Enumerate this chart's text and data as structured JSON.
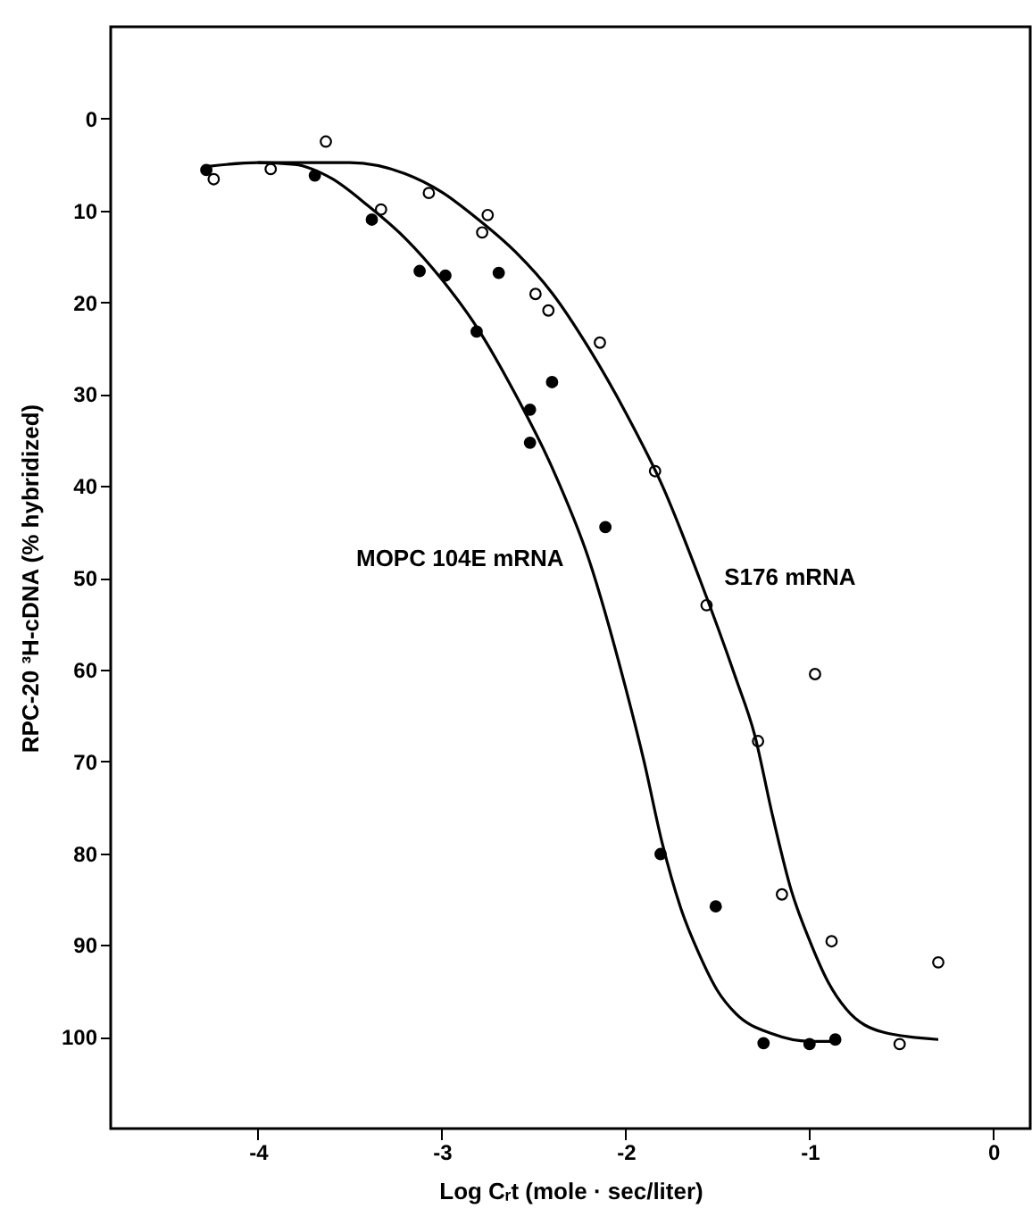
{
  "chart_data": {
    "type": "scatter",
    "xlabel": "Log Cᵣt (mole · sec/liter)",
    "ylabel": "RPC-20 ³H-cDNA (% hybridized)",
    "xlim": [
      -4.8,
      0.2
    ],
    "xticks": [
      -4,
      -3,
      -2,
      -1,
      0
    ],
    "ylim": [
      110,
      -10
    ],
    "yticks": [
      0,
      10,
      20,
      30,
      40,
      50,
      60,
      70,
      80,
      90,
      100
    ],
    "grid": false,
    "series": [
      {
        "marker": "circle",
        "color": "#000000",
        "x": [
          -4.28,
          -3.69,
          -3.38,
          -3.12,
          -2.98,
          -2.69,
          -2.81,
          -2.4,
          -2.52,
          -2.52,
          -2.11,
          -1.81,
          -1.51,
          -1.25,
          -1.0,
          -0.86
        ],
        "values": [
          5.6,
          6.2,
          11.0,
          16.6,
          17.1,
          16.8,
          23.2,
          28.7,
          31.7,
          35.3,
          44.5,
          80.1,
          85.8,
          100.7,
          100.8,
          100.3
        ]
      },
      {
        "marker": "circle",
        "color": "#ffffff",
        "x": [
          -4.24,
          -3.93,
          -3.63,
          -3.33,
          -3.07,
          -2.75,
          -2.78,
          -2.49,
          -2.42,
          -2.14,
          -1.84,
          -1.56,
          -0.97,
          -1.28,
          -1.15,
          -0.88,
          -0.3,
          -0.51
        ],
        "values": [
          6.6,
          5.5,
          2.5,
          9.9,
          8.1,
          10.5,
          12.4,
          19.1,
          20.9,
          24.4,
          38.4,
          53.0,
          60.5,
          67.8,
          84.5,
          89.6,
          91.9,
          100.8
        ]
      },
      {
        "type": "line",
        "name": "MOPC 104E mRNA",
        "color": "#000000",
        "x": [
          -4.27,
          -4.0,
          -3.8,
          -3.6,
          -3.4,
          -3.2,
          -3.0,
          -2.8,
          -2.6,
          -2.4,
          -2.2,
          -2.0,
          -1.9,
          -1.8,
          -1.7,
          -1.6,
          -1.5,
          -1.4,
          -1.2,
          -1.0,
          -0.88
        ],
        "values": [
          5.2,
          4.8,
          5.0,
          6.5,
          9.5,
          13,
          17.5,
          23,
          30,
          38,
          48,
          62,
          70,
          79,
          86,
          91,
          95,
          97.5,
          99.7,
          100.5,
          100.5
        ]
      },
      {
        "type": "line",
        "name": "S176 mRNA",
        "color": "#000000",
        "x": [
          -4.0,
          -3.5,
          -3.2,
          -3.0,
          -2.8,
          -2.6,
          -2.4,
          -2.2,
          -2.0,
          -1.8,
          -1.6,
          -1.4,
          -1.3,
          -1.2,
          -1.1,
          -1.0,
          -0.9,
          -0.8,
          -0.6,
          -0.3
        ],
        "values": [
          4.8,
          4.8,
          6,
          8,
          11,
          14.5,
          19,
          25,
          32,
          40,
          50,
          61,
          67,
          76,
          84,
          89.5,
          94,
          97,
          99.5,
          100.3
        ]
      }
    ]
  }
}
